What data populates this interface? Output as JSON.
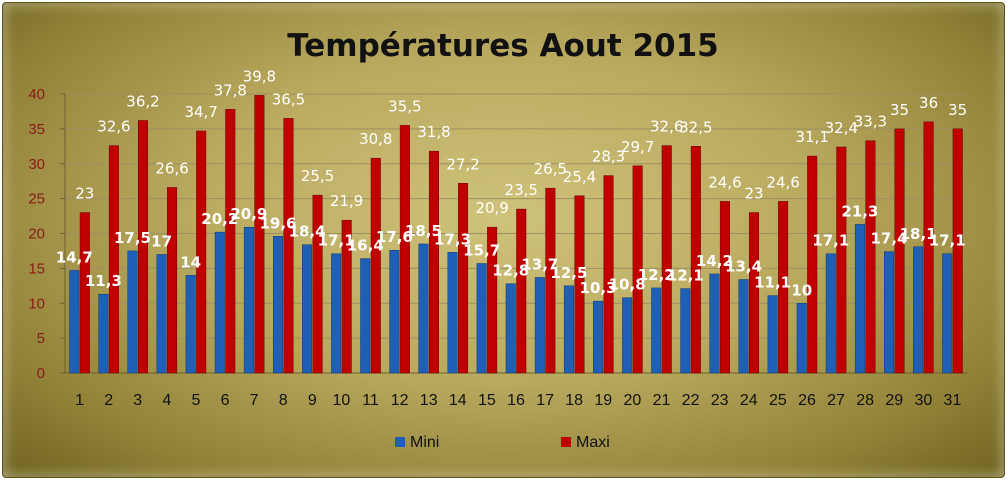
{
  "chart_data": {
    "type": "bar",
    "title": "Températures Aout 2015",
    "categories": [
      "1",
      "2",
      "3",
      "4",
      "5",
      "6",
      "7",
      "8",
      "9",
      "10",
      "11",
      "12",
      "13",
      "14",
      "15",
      "16",
      "17",
      "18",
      "19",
      "20",
      "21",
      "22",
      "23",
      "24",
      "25",
      "26",
      "27",
      "28",
      "29",
      "30",
      "31"
    ],
    "series": [
      {
        "name": "Mini",
        "color": "#1f5fb5",
        "values": [
          14.7,
          11.3,
          17.5,
          17,
          14,
          20.2,
          20.9,
          19.6,
          18.4,
          17.1,
          16.4,
          17.6,
          18.5,
          17.3,
          15.7,
          12.8,
          13.7,
          12.5,
          10.3,
          10.8,
          12.2,
          12.1,
          14.2,
          13.4,
          11.1,
          10,
          17.1,
          21.3,
          17.4,
          18.1,
          17.1
        ],
        "labels": [
          "14,7",
          "11,3",
          "17,5",
          "17",
          "14",
          "20,2",
          "20,9",
          "19,6",
          "18,4",
          "17,1",
          "16,4",
          "17,6",
          "18,5",
          "17,3",
          "15,7",
          "12,8",
          "13,7",
          "12,5",
          "10,3",
          "10,8",
          "12,2",
          "12,1",
          "14,2",
          "13,4",
          "11,1",
          "10",
          "17,1",
          "21,3",
          "17,4",
          "18,1",
          "17,1"
        ]
      },
      {
        "name": "Maxi",
        "color": "#c00000",
        "values": [
          23,
          32.6,
          36.2,
          26.6,
          34.7,
          37.8,
          39.8,
          36.5,
          25.5,
          21.9,
          30.8,
          35.5,
          31.8,
          27.2,
          20.9,
          23.5,
          26.5,
          25.4,
          28.3,
          29.7,
          32.6,
          32.5,
          24.6,
          23,
          24.6,
          31.1,
          32.4,
          33.3,
          35,
          36,
          35
        ],
        "labels": [
          "23",
          "32,6",
          "36,2",
          "26,6",
          "34,7",
          "37,8",
          "39,8",
          "36,5",
          "25,5",
          "21,9",
          "30,8",
          "35,5",
          "31,8",
          "27,2",
          "20,9",
          "23,5",
          "26,5",
          "25,4",
          "28,3",
          "29,7",
          "32,6",
          "32,5",
          "24,6",
          "23",
          "24,6",
          "31,1",
          "32,4",
          "33,3",
          "35",
          "36",
          "35"
        ]
      }
    ],
    "y_ticks": [
      "0",
      "5",
      "10",
      "15",
      "20",
      "25",
      "30",
      "35",
      "40"
    ],
    "ylim": [
      0,
      40
    ],
    "grid": true,
    "legend_position": "bottom"
  }
}
